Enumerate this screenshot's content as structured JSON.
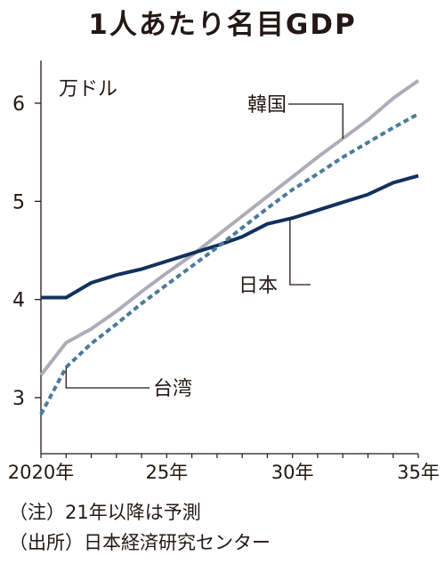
{
  "chart_data": {
    "type": "line",
    "title": "1人あたり名目GDP",
    "unit_label": "万ドル",
    "x": [
      2020,
      2021,
      2022,
      2023,
      2024,
      2025,
      2026,
      2027,
      2028,
      2029,
      2030,
      2031,
      2032,
      2033,
      2034,
      2035
    ],
    "x_tick_values": [
      2020,
      2025,
      2030,
      2035
    ],
    "x_tick_labels": [
      "2020年",
      "25年",
      "30年",
      "35年"
    ],
    "xlim": [
      2020,
      2035
    ],
    "y_ticks": [
      3,
      4,
      5,
      6
    ],
    "y_tick_labels": [
      "3",
      "4",
      "5",
      "6"
    ],
    "ylim": [
      2.6,
      6.4
    ],
    "grid": false,
    "legend": "direct labels on lines",
    "series": [
      {
        "name": "韓国",
        "color": "#adadb8",
        "style": "solid",
        "values": [
          3.23,
          3.56,
          3.7,
          3.88,
          4.08,
          4.27,
          4.45,
          4.65,
          4.85,
          5.05,
          5.25,
          5.45,
          5.64,
          5.83,
          6.05,
          6.23
        ]
      },
      {
        "name": "日本",
        "color": "#12315c",
        "style": "solid",
        "values": [
          4.02,
          4.02,
          4.17,
          4.25,
          4.31,
          4.39,
          4.47,
          4.55,
          4.64,
          4.77,
          4.83,
          4.91,
          4.99,
          5.07,
          5.19,
          5.26
        ]
      },
      {
        "name": "台湾",
        "color": "#4a7b9b",
        "style": "dashed",
        "values": [
          2.83,
          3.31,
          3.55,
          3.75,
          3.96,
          4.15,
          4.34,
          4.53,
          4.73,
          4.93,
          5.12,
          5.28,
          5.45,
          5.6,
          5.75,
          5.89
        ]
      }
    ],
    "label_anchors": [
      {
        "series": "韓国",
        "x": 2032.0
      },
      {
        "series": "日本",
        "x": 2029.9
      },
      {
        "series": "台湾",
        "x": 2021.0
      }
    ]
  },
  "notes": {
    "note1": "（注）21年以降は予測",
    "note2": "（出所）日本経済研究センター"
  }
}
